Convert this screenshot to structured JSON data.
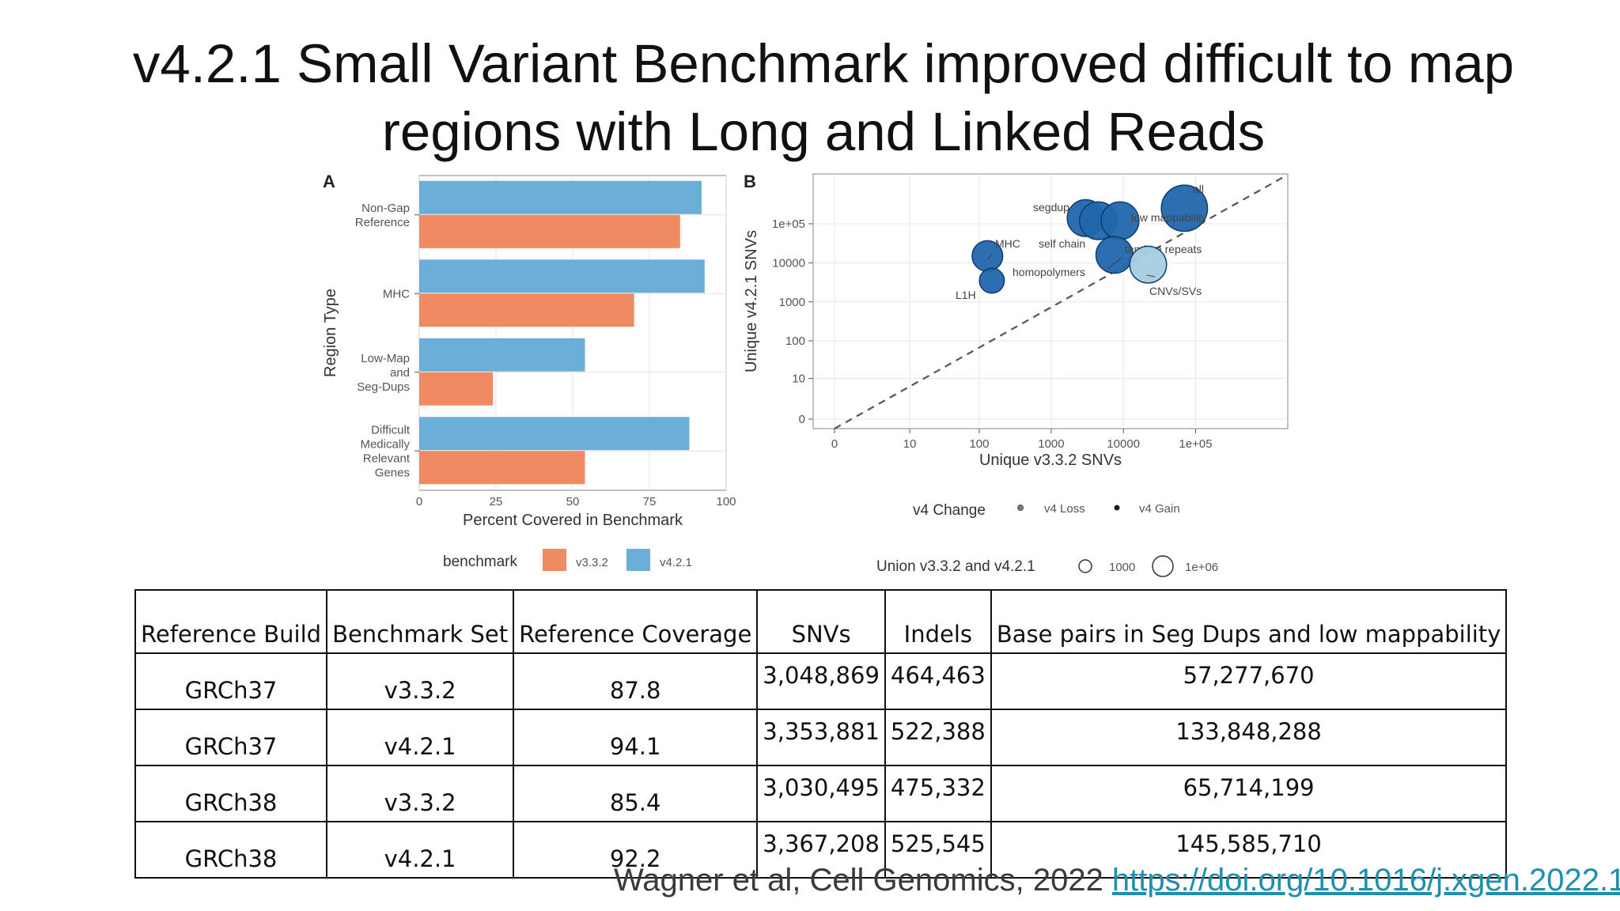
{
  "slide": {
    "title_line1": "v4.2.1 Small Variant Benchmark improved difficult to map",
    "title_line2": "regions with Long and Linked Reads",
    "citation_text": "Wagner et al, Cell Genomics, 2022 ",
    "citation_link": "https://doi.org/10.1016/j.xgen.2022.1"
  },
  "chart_data": [
    {
      "type": "bar",
      "orientation": "horizontal",
      "panel": "A",
      "title": "",
      "xlabel": "Percent Covered in Benchmark",
      "ylabel": "Region Type",
      "xlim": [
        0,
        100
      ],
      "xticks": [
        0,
        25,
        50,
        75,
        100
      ],
      "grid": true,
      "categories": [
        [
          "Non-Gap",
          "Reference"
        ],
        [
          "MHC"
        ],
        [
          "Low-Map",
          "and",
          "Seg-Dups"
        ],
        [
          "Difficult",
          "Medically",
          "Relevant",
          "Genes"
        ]
      ],
      "series": [
        {
          "name": "v4.2.1",
          "color": "#6baed6",
          "values": [
            92,
            93,
            54,
            88
          ]
        },
        {
          "name": "v3.3.2",
          "color": "#ef8a62",
          "values": [
            85,
            70,
            24,
            54
          ]
        }
      ],
      "legend": {
        "title": "benchmark",
        "position": "bottom",
        "items": [
          "v3.3.2",
          "v4.2.1"
        ]
      }
    },
    {
      "type": "scatter",
      "panel": "B",
      "title": "",
      "xlabel": "Unique v3.3.2 SNVs",
      "ylabel": "Unique v4.2.1 SNVs",
      "scale": "log10(1+x)",
      "xticks": [
        "0",
        "10",
        "100",
        "1000",
        "10000",
        "1e+05"
      ],
      "yticks": [
        "0",
        "10",
        "100",
        "1000",
        "10000",
        "1e+05"
      ],
      "diagonal": "y = x (dashed)",
      "grid": true,
      "points": [
        {
          "label": "all",
          "x": 70000,
          "y": 250000,
          "change": "gain",
          "union": 3100000
        },
        {
          "label": "segdup",
          "x": 3000,
          "y": 140000,
          "change": "gain",
          "union": 500000
        },
        {
          "label": "",
          "x": 4500,
          "y": 120000,
          "change": "gain",
          "union": 600000
        },
        {
          "label": "low mappability",
          "x": 9000,
          "y": 120000,
          "change": "gain",
          "union": 600000
        },
        {
          "label": "MHC",
          "x": 130,
          "y": 15000,
          "change": "gain",
          "union": 150000
        },
        {
          "label": "self chain",
          "x": 7500,
          "y": 16000,
          "change": "gain",
          "union": 500000
        },
        {
          "label": "tandem repeats",
          "x": 7500,
          "y": 16000,
          "change": "gain",
          "union": 500000
        },
        {
          "label": "homopolymers",
          "x": 7500,
          "y": 16000,
          "change": "gain",
          "union": 500000
        },
        {
          "label": "CNVs/SVs",
          "x": 22000,
          "y": 9000,
          "change": "loss",
          "union": 500000
        },
        {
          "label": "L1H",
          "x": 150,
          "y": 3500,
          "change": "gain",
          "union": 50000
        }
      ],
      "colors": {
        "gain": "#2166ac",
        "loss": "#a6cee3"
      },
      "legends": [
        {
          "title": "v4 Change",
          "items": [
            "v4 Loss",
            "v4 Gain"
          ],
          "position": "bottom"
        },
        {
          "title": "Union v3.3.2 and v4.2.1",
          "items": [
            "1000",
            "1e+06"
          ],
          "position": "bottom"
        }
      ]
    }
  ],
  "table": {
    "headers": [
      "Reference Build",
      "Benchmark Set",
      "Reference Coverage",
      "SNVs",
      "Indels",
      "Base pairs in Seg Dups and low mappability"
    ],
    "rows": [
      [
        "GRCh37",
        "v3.3.2",
        "87.8",
        "3,048,869",
        "464,463",
        "57,277,670"
      ],
      [
        "GRCh37",
        "v4.2.1",
        "94.1",
        "3,353,881",
        "522,388",
        "133,848,288"
      ],
      [
        "GRCh38",
        "v3.3.2",
        "85.4",
        "3,030,495",
        "475,332",
        "65,714,199"
      ],
      [
        "GRCh38",
        "v4.2.1",
        "92.2",
        "3,367,208",
        "525,545",
        "145,585,710"
      ]
    ]
  }
}
